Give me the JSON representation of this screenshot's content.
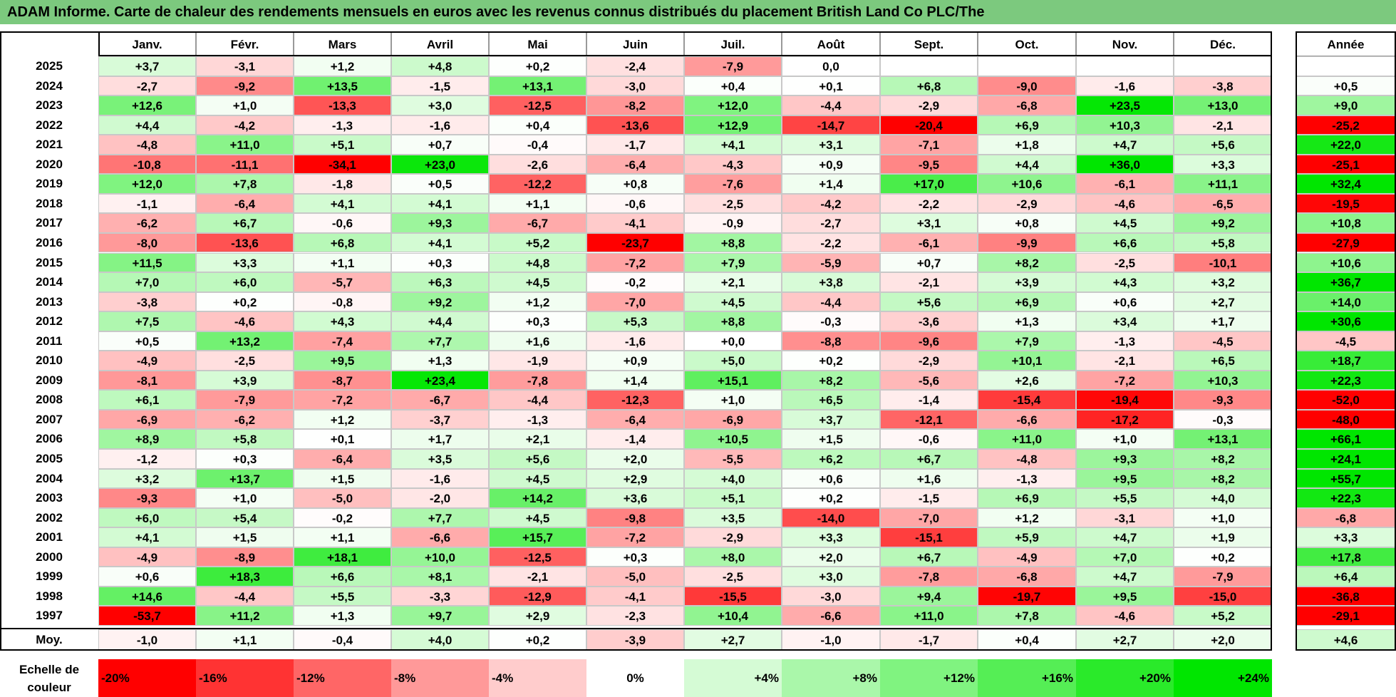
{
  "title": "ADAM Informe. Carte de chaleur des rendements mensuels en euros avec les revenus connus distribués du placement British Land Co PLC/The",
  "chart_data": {
    "type": "heatmap",
    "columns": [
      "Janv.",
      "Févr.",
      "Mars",
      "Avril",
      "Mai",
      "Juin",
      "Juil.",
      "Août",
      "Sept.",
      "Oct.",
      "Nov.",
      "Déc."
    ],
    "year_header": "Année",
    "rows": [
      {
        "label": "2025",
        "values": [
          "+3,7",
          "-3,1",
          "+1,2",
          "+4,8",
          "+0,2",
          "-2,4",
          "-7,9",
          "0,0",
          "",
          "",
          "",
          ""
        ],
        "year": ""
      },
      {
        "label": "2024",
        "values": [
          "-2,7",
          "-9,2",
          "+13,5",
          "-1,5",
          "+13,1",
          "-3,0",
          "+0,4",
          "+0,1",
          "+6,8",
          "-9,0",
          "-1,6",
          "-3,8"
        ],
        "year": "+0,5"
      },
      {
        "label": "2023",
        "values": [
          "+12,6",
          "+1,0",
          "-13,3",
          "+3,0",
          "-12,5",
          "-8,2",
          "+12,0",
          "-4,4",
          "-2,9",
          "-6,8",
          "+23,5",
          "+13,0"
        ],
        "year": "+9,0"
      },
      {
        "label": "2022",
        "values": [
          "+4,4",
          "-4,2",
          "-1,3",
          "-1,6",
          "+0,4",
          "-13,6",
          "+12,9",
          "-14,7",
          "-20,4",
          "+6,9",
          "+10,3",
          "-2,1"
        ],
        "year": "-25,2"
      },
      {
        "label": "2021",
        "values": [
          "-4,8",
          "+11,0",
          "+5,1",
          "+0,7",
          "-0,4",
          "-1,7",
          "+4,1",
          "+3,1",
          "-7,1",
          "+1,8",
          "+4,7",
          "+5,6"
        ],
        "year": "+22,0"
      },
      {
        "label": "2020",
        "values": [
          "-10,8",
          "-11,1",
          "-34,1",
          "+23,0",
          "-2,6",
          "-6,4",
          "-4,3",
          "+0,9",
          "-9,5",
          "+4,4",
          "+36,0",
          "+3,3"
        ],
        "year": "-25,1"
      },
      {
        "label": "2019",
        "values": [
          "+12,0",
          "+7,8",
          "-1,8",
          "+0,5",
          "-12,2",
          "+0,8",
          "-7,6",
          "+1,4",
          "+17,0",
          "+10,6",
          "-6,1",
          "+11,1"
        ],
        "year": "+32,4"
      },
      {
        "label": "2018",
        "values": [
          "-1,1",
          "-6,4",
          "+4,1",
          "+4,1",
          "+1,1",
          "-0,6",
          "-2,5",
          "-4,2",
          "-2,2",
          "-2,9",
          "-4,6",
          "-6,5"
        ],
        "year": "-19,5"
      },
      {
        "label": "2017",
        "values": [
          "-6,2",
          "+6,7",
          "-0,6",
          "+9,3",
          "-6,7",
          "-4,1",
          "-0,9",
          "-2,7",
          "+3,1",
          "+0,8",
          "+4,5",
          "+9,2"
        ],
        "year": "+10,8"
      },
      {
        "label": "2016",
        "values": [
          "-8,0",
          "-13,6",
          "+6,8",
          "+4,1",
          "+5,2",
          "-23,7",
          "+8,8",
          "-2,2",
          "-6,1",
          "-9,9",
          "+6,6",
          "+5,8"
        ],
        "year": "-27,9"
      },
      {
        "label": "2015",
        "values": [
          "+11,5",
          "+3,3",
          "+1,1",
          "+0,3",
          "+4,8",
          "-7,2",
          "+7,9",
          "-5,9",
          "+0,7",
          "+8,2",
          "-2,5",
          "-10,1"
        ],
        "year": "+10,6"
      },
      {
        "label": "2014",
        "values": [
          "+7,0",
          "+6,0",
          "-5,7",
          "+6,3",
          "+4,5",
          "-0,2",
          "+2,1",
          "+3,8",
          "-2,1",
          "+3,9",
          "+4,3",
          "+3,2"
        ],
        "year": "+36,7"
      },
      {
        "label": "2013",
        "values": [
          "-3,8",
          "+0,2",
          "-0,8",
          "+9,2",
          "+1,2",
          "-7,0",
          "+4,5",
          "-4,4",
          "+5,6",
          "+6,9",
          "+0,6",
          "+2,7"
        ],
        "year": "+14,0"
      },
      {
        "label": "2012",
        "values": [
          "+7,5",
          "-4,6",
          "+4,3",
          "+4,4",
          "+0,3",
          "+5,3",
          "+8,8",
          "-0,3",
          "-3,6",
          "+1,3",
          "+3,4",
          "+1,7"
        ],
        "year": "+30,6"
      },
      {
        "label": "2011",
        "values": [
          "+0,5",
          "+13,2",
          "-7,4",
          "+7,7",
          "+1,6",
          "-1,6",
          "+0,0",
          "-8,8",
          "-9,6",
          "+7,9",
          "-1,3",
          "-4,5"
        ],
        "year": "-4,5"
      },
      {
        "label": "2010",
        "values": [
          "-4,9",
          "-2,5",
          "+9,5",
          "+1,3",
          "-1,9",
          "+0,9",
          "+5,0",
          "+0,2",
          "-2,9",
          "+10,1",
          "-2,1",
          "+6,5"
        ],
        "year": "+18,7"
      },
      {
        "label": "2009",
        "values": [
          "-8,1",
          "+3,9",
          "-8,7",
          "+23,4",
          "-7,8",
          "+1,4",
          "+15,1",
          "+8,2",
          "-5,6",
          "+2,6",
          "-7,2",
          "+10,3"
        ],
        "year": "+22,3"
      },
      {
        "label": "2008",
        "values": [
          "+6,1",
          "-7,9",
          "-7,2",
          "-6,7",
          "-4,4",
          "-12,3",
          "+1,0",
          "+6,5",
          "-1,4",
          "-15,4",
          "-19,4",
          "-9,3"
        ],
        "year": "-52,0"
      },
      {
        "label": "2007",
        "values": [
          "-6,9",
          "-6,2",
          "+1,2",
          "-3,7",
          "-1,3",
          "-6,4",
          "-6,9",
          "+3,7",
          "-12,1",
          "-6,6",
          "-17,2",
          "-0,3"
        ],
        "year": "-48,0"
      },
      {
        "label": "2006",
        "values": [
          "+8,9",
          "+5,8",
          "+0,1",
          "+1,7",
          "+2,1",
          "-1,4",
          "+10,5",
          "+1,5",
          "-0,6",
          "+11,0",
          "+1,0",
          "+13,1"
        ],
        "year": "+66,1"
      },
      {
        "label": "2005",
        "values": [
          "-1,2",
          "+0,3",
          "-6,4",
          "+3,5",
          "+5,6",
          "+2,0",
          "-5,5",
          "+6,2",
          "+6,7",
          "-4,8",
          "+9,3",
          "+8,2"
        ],
        "year": "+24,1"
      },
      {
        "label": "2004",
        "values": [
          "+3,2",
          "+13,7",
          "+1,5",
          "-1,6",
          "+4,5",
          "+2,9",
          "+4,0",
          "+0,6",
          "+1,6",
          "-1,3",
          "+9,5",
          "+8,2"
        ],
        "year": "+55,7"
      },
      {
        "label": "2003",
        "values": [
          "-9,3",
          "+1,0",
          "-5,0",
          "-2,0",
          "+14,2",
          "+3,6",
          "+5,1",
          "+0,2",
          "-1,5",
          "+6,9",
          "+5,5",
          "+4,0"
        ],
        "year": "+22,3"
      },
      {
        "label": "2002",
        "values": [
          "+6,0",
          "+5,4",
          "-0,2",
          "+7,7",
          "+4,5",
          "-9,8",
          "+3,5",
          "-14,0",
          "-7,0",
          "+1,2",
          "-3,1",
          "+1,0"
        ],
        "year": "-6,8"
      },
      {
        "label": "2001",
        "values": [
          "+4,1",
          "+1,5",
          "+1,1",
          "-6,6",
          "+15,7",
          "-7,2",
          "-2,9",
          "+3,3",
          "-15,1",
          "+5,9",
          "+4,7",
          "+1,9"
        ],
        "year": "+3,3"
      },
      {
        "label": "2000",
        "values": [
          "-4,9",
          "-8,9",
          "+18,1",
          "+10,0",
          "-12,5",
          "+0,3",
          "+8,0",
          "+2,0",
          "+6,7",
          "-4,9",
          "+7,0",
          "+0,2"
        ],
        "year": "+17,8"
      },
      {
        "label": "1999",
        "values": [
          "+0,6",
          "+18,3",
          "+6,6",
          "+8,1",
          "-2,1",
          "-5,0",
          "-2,5",
          "+3,0",
          "-7,8",
          "-6,8",
          "+4,7",
          "-7,9"
        ],
        "year": "+6,4"
      },
      {
        "label": "1998",
        "values": [
          "+14,6",
          "-4,4",
          "+5,5",
          "-3,3",
          "-12,9",
          "-4,1",
          "-15,5",
          "-3,0",
          "+9,4",
          "-19,7",
          "+9,5",
          "-15,0"
        ],
        "year": "-36,8"
      },
      {
        "label": "1997",
        "values": [
          "-53,7",
          "+11,2",
          "+1,3",
          "+9,7",
          "+2,9",
          "-2,3",
          "+10,4",
          "-6,6",
          "+11,0",
          "+7,8",
          "-4,6",
          "+5,2"
        ],
        "year": "-29,1"
      }
    ],
    "average": {
      "label": "Moy.",
      "values": [
        "-1,0",
        "+1,1",
        "-0,4",
        "+4,0",
        "+0,2",
        "-3,9",
        "+2,7",
        "-1,0",
        "-1,7",
        "+0,4",
        "+2,7",
        "+2,0"
      ],
      "year": "+4,6"
    },
    "legend": {
      "label": "Echelle de couleur",
      "steps": [
        {
          "text": "-20%",
          "value": -20
        },
        {
          "text": "-16%",
          "value": -16
        },
        {
          "text": "-12%",
          "value": -12
        },
        {
          "text": "-8%",
          "value": -8
        },
        {
          "text": "-4%",
          "value": -4
        },
        {
          "text": "0%",
          "value": 0
        },
        {
          "text": "+4%",
          "value": 4
        },
        {
          "text": "+8%",
          "value": 8
        },
        {
          "text": "+12%",
          "value": 12
        },
        {
          "text": "+16%",
          "value": 16
        },
        {
          "text": "+20%",
          "value": 20
        },
        {
          "text": "+24%",
          "value": 24
        }
      ]
    },
    "colors": {
      "negative_max": "#ff0000",
      "neutral": "#ffffff",
      "positive_max": "#00e600"
    },
    "color_scale": {
      "negative_full_at": -20,
      "positive_full_at": 24
    }
  }
}
